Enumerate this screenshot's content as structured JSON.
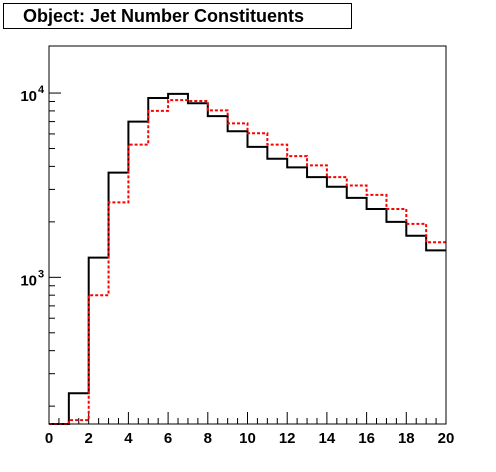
{
  "title": "Object: Jet Number Constituents",
  "chart_data": {
    "type": "line",
    "title": "Object: Jet Number Constituents",
    "xlabel": "",
    "ylabel": "",
    "xlim": [
      0,
      20
    ],
    "ylim": [
      160,
      18000
    ],
    "yscale": "log",
    "grid": false,
    "legend": "none",
    "x_ticks": [
      "0",
      "2",
      "4",
      "6",
      "8",
      "10",
      "12",
      "14",
      "16",
      "18",
      "20"
    ],
    "y_ticks": [
      {
        "value": 1000,
        "base": "10",
        "exp": "3"
      },
      {
        "value": 10000,
        "base": "10",
        "exp": "4"
      }
    ],
    "bin_edges": [
      0,
      1,
      2,
      3,
      4,
      5,
      6,
      7,
      8,
      9,
      10,
      11,
      12,
      13,
      14,
      15,
      16,
      17,
      18,
      19,
      20
    ],
    "series": [
      {
        "color": "#000000",
        "style": "solid",
        "values": [
          160,
          235,
          1280,
          3700,
          7000,
          9400,
          9900,
          8800,
          7500,
          6200,
          5100,
          4400,
          3950,
          3500,
          3100,
          2700,
          2350,
          2000,
          1680,
          1400
        ]
      },
      {
        "color": "#ff0000",
        "style": "dashed",
        "values": [
          160,
          168,
          800,
          2550,
          5250,
          8000,
          9150,
          9050,
          8050,
          6850,
          6050,
          5250,
          4550,
          4050,
          3500,
          3150,
          2800,
          2350,
          1950,
          1550
        ]
      }
    ]
  }
}
